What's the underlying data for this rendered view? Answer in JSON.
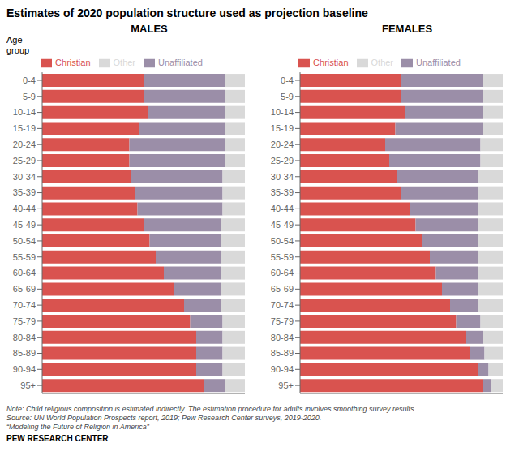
{
  "title": "Estimates of 2020 population structure used as projection baseline",
  "annotations": [
    "Note: Child religious composition is estimated indirectly. The estimation procedure for adults involves smoothing survey results.",
    "Source: UN World Population Prospects report, 2019; Pew Research Center surveys, 2019-2020.",
    "“Modeling the Future of Religion in America”",
    "PEW RESEARCH CENTER"
  ],
  "chart_data": [
    {
      "type": "bar",
      "orientation": "horizontal",
      "stacked": true,
      "title": "MALES",
      "ylabel": "Age\ngroup",
      "legend": "top",
      "tick_labels": "y",
      "grid": false,
      "xlim": [
        0,
        1.0
      ],
      "xticks": [],
      "categories": [
        "0-4",
        "5-9",
        "10-14",
        "15-19",
        "20-24",
        "25-29",
        "30-34",
        "35-39",
        "40-44",
        "45-49",
        "50-54",
        "55-59",
        "60-64",
        "65-69",
        "70-74",
        "75-79",
        "80-84",
        "85-89",
        "90-94",
        "95+"
      ],
      "series": [
        {
          "name": "Christian",
          "color": "#d9534f",
          "values": [
            0.5,
            0.5,
            0.52,
            0.48,
            0.43,
            0.43,
            0.44,
            0.46,
            0.47,
            0.5,
            0.53,
            0.56,
            0.6,
            0.65,
            0.7,
            0.73,
            0.76,
            0.76,
            0.76,
            0.8
          ]
        },
        {
          "name": "Unaffiliated",
          "color": "#9b8ea8",
          "values": [
            0.4,
            0.4,
            0.38,
            0.42,
            0.47,
            0.47,
            0.45,
            0.43,
            0.42,
            0.38,
            0.35,
            0.32,
            0.28,
            0.23,
            0.18,
            0.16,
            0.13,
            0.13,
            0.13,
            0.1
          ]
        },
        {
          "name": "Other",
          "color": "#d9d9d9",
          "values": [
            0.1,
            0.1,
            0.1,
            0.1,
            0.1,
            0.1,
            0.11,
            0.11,
            0.11,
            0.12,
            0.12,
            0.12,
            0.12,
            0.12,
            0.12,
            0.11,
            0.11,
            0.11,
            0.11,
            0.1
          ]
        }
      ]
    },
    {
      "type": "bar",
      "orientation": "horizontal",
      "stacked": true,
      "title": "FEMALES",
      "legend": "top",
      "tick_labels": "y",
      "grid": false,
      "xlim": [
        0,
        1.0
      ],
      "xticks": [],
      "categories": [
        "0-4",
        "5-9",
        "10-14",
        "15-19",
        "20-24",
        "25-29",
        "30-34",
        "35-39",
        "40-44",
        "45-49",
        "50-54",
        "55-59",
        "60-64",
        "65-69",
        "70-74",
        "75-79",
        "80-84",
        "85-89",
        "90-94",
        "95+"
      ],
      "series": [
        {
          "name": "Christian",
          "color": "#d9534f",
          "values": [
            0.5,
            0.5,
            0.52,
            0.47,
            0.42,
            0.44,
            0.48,
            0.5,
            0.54,
            0.57,
            0.6,
            0.64,
            0.67,
            0.7,
            0.74,
            0.77,
            0.82,
            0.84,
            0.88,
            0.9
          ]
        },
        {
          "name": "Unaffiliated",
          "color": "#9b8ea8",
          "values": [
            0.4,
            0.4,
            0.38,
            0.43,
            0.47,
            0.45,
            0.4,
            0.38,
            0.34,
            0.31,
            0.28,
            0.24,
            0.21,
            0.18,
            0.14,
            0.12,
            0.08,
            0.07,
            0.05,
            0.04
          ]
        },
        {
          "name": "Other",
          "color": "#d9d9d9",
          "values": [
            0.1,
            0.1,
            0.1,
            0.1,
            0.11,
            0.11,
            0.12,
            0.12,
            0.12,
            0.12,
            0.12,
            0.12,
            0.12,
            0.12,
            0.12,
            0.11,
            0.1,
            0.09,
            0.07,
            0.06
          ]
        }
      ]
    }
  ]
}
